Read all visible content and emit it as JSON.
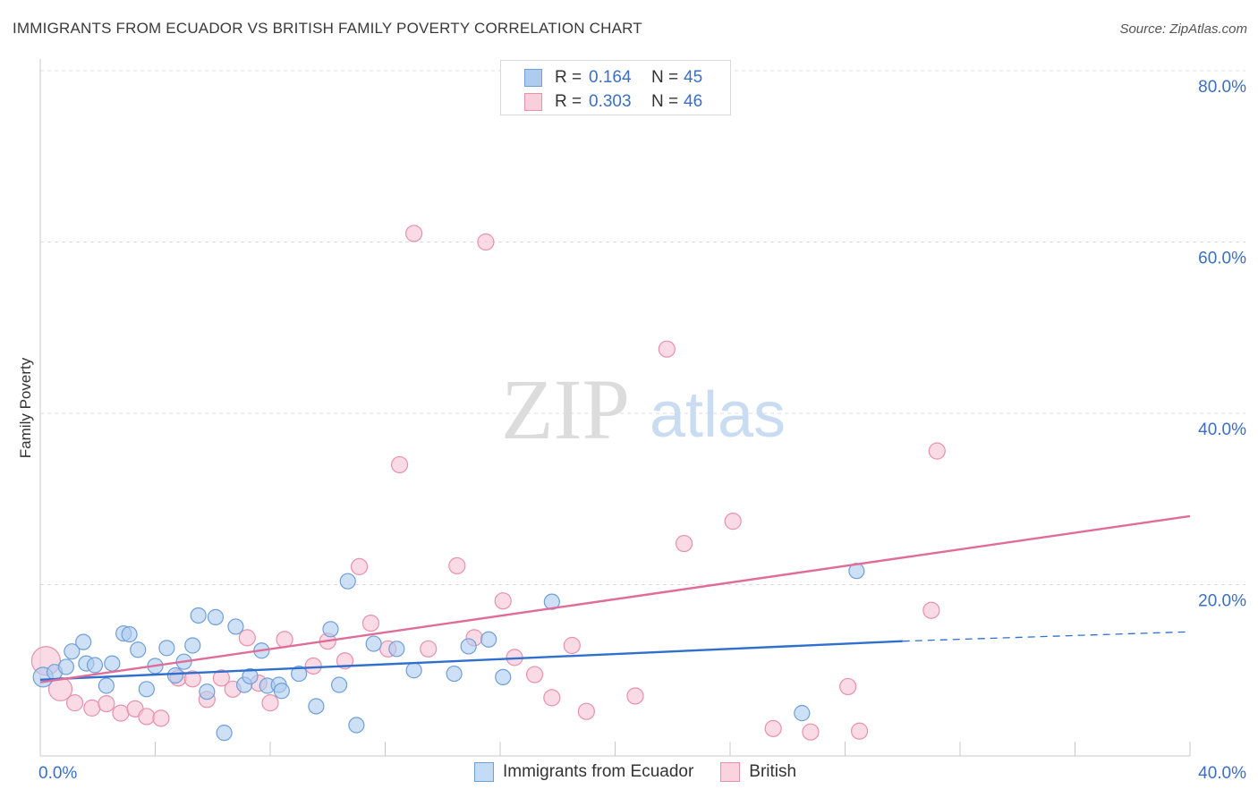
{
  "title": "IMMIGRANTS FROM ECUADOR VS BRITISH FAMILY POVERTY CORRELATION CHART",
  "source": "Source: ZipAtlas.com",
  "watermark": {
    "zip": "ZIP",
    "atlas": "atlas"
  },
  "colors": {
    "blue_fill": "#aecbf0",
    "blue_stroke": "#6f9fd8",
    "blue_line": "#2f6fce",
    "pink_fill": "#f6c2d2",
    "pink_stroke": "#e890ad",
    "pink_line": "#e06c98",
    "axis_label": "#3a6fc4",
    "grid": "#dcdcdc"
  },
  "legend_top": {
    "rows": [
      {
        "series": "Immigrants from Ecuador",
        "r_label": "R =",
        "r_value": "0.164",
        "n_label": "N =",
        "n_value": "45"
      },
      {
        "series": "British",
        "r_label": "R =",
        "r_value": "0.303",
        "n_label": "N =",
        "n_value": "46"
      }
    ]
  },
  "chart_data": {
    "type": "scatter",
    "title": "IMMIGRANTS FROM ECUADOR VS BRITISH FAMILY POVERTY CORRELATION CHART",
    "xlabel": "",
    "ylabel": "Family Poverty",
    "xlim": [
      0,
      40
    ],
    "ylim": [
      0,
      80
    ],
    "x_ticks": [
      0,
      40
    ],
    "x_tick_labels": [
      "0.0%",
      "40.0%"
    ],
    "y_ticks": [
      20,
      40,
      60,
      80
    ],
    "y_tick_labels": [
      "20.0%",
      "40.0%",
      "60.0%",
      "80.0%"
    ],
    "grid": true,
    "legend": [
      "Immigrants from Ecuador",
      "British"
    ],
    "series": [
      {
        "name": "Immigrants from Ecuador",
        "color": "blue",
        "points": [
          [
            0.1,
            9.2
          ],
          [
            0.5,
            9.8
          ],
          [
            0.9,
            10.4
          ],
          [
            1.1,
            12.2
          ],
          [
            1.5,
            13.3
          ],
          [
            1.6,
            10.8
          ],
          [
            1.9,
            10.6
          ],
          [
            2.3,
            8.2
          ],
          [
            2.5,
            10.8
          ],
          [
            2.9,
            14.3
          ],
          [
            3.1,
            14.2
          ],
          [
            3.4,
            12.4
          ],
          [
            3.7,
            7.8
          ],
          [
            4.0,
            10.5
          ],
          [
            4.4,
            12.6
          ],
          [
            4.7,
            9.4
          ],
          [
            5.0,
            11.0
          ],
          [
            5.3,
            12.9
          ],
          [
            5.5,
            16.4
          ],
          [
            5.8,
            7.5
          ],
          [
            6.1,
            16.2
          ],
          [
            6.4,
            2.7
          ],
          [
            6.8,
            15.1
          ],
          [
            7.1,
            8.3
          ],
          [
            7.3,
            9.3
          ],
          [
            7.7,
            12.3
          ],
          [
            7.9,
            8.2
          ],
          [
            8.3,
            8.3
          ],
          [
            8.4,
            7.6
          ],
          [
            9.0,
            9.6
          ],
          [
            9.6,
            5.8
          ],
          [
            10.1,
            14.8
          ],
          [
            10.4,
            8.3
          ],
          [
            10.7,
            20.4
          ],
          [
            11.0,
            3.6
          ],
          [
            11.6,
            13.1
          ],
          [
            12.4,
            12.5
          ],
          [
            13.0,
            10.0
          ],
          [
            14.4,
            9.6
          ],
          [
            14.9,
            12.8
          ],
          [
            15.6,
            13.6
          ],
          [
            16.1,
            9.2
          ],
          [
            17.8,
            18.0
          ],
          [
            26.5,
            5.0
          ],
          [
            28.4,
            21.6
          ]
        ]
      },
      {
        "name": "British",
        "color": "pink",
        "points": [
          [
            0.2,
            11.1
          ],
          [
            0.7,
            7.8
          ],
          [
            1.2,
            6.2
          ],
          [
            1.8,
            5.6
          ],
          [
            2.3,
            6.1
          ],
          [
            2.8,
            5.0
          ],
          [
            3.3,
            5.5
          ],
          [
            3.7,
            4.6
          ],
          [
            4.2,
            4.4
          ],
          [
            4.8,
            9.1
          ],
          [
            5.3,
            9.0
          ],
          [
            5.8,
            6.6
          ],
          [
            6.3,
            9.1
          ],
          [
            6.7,
            7.8
          ],
          [
            7.2,
            13.8
          ],
          [
            7.6,
            8.5
          ],
          [
            8.0,
            6.2
          ],
          [
            8.5,
            13.6
          ],
          [
            9.5,
            10.5
          ],
          [
            10.0,
            13.4
          ],
          [
            10.6,
            11.1
          ],
          [
            11.1,
            22.1
          ],
          [
            11.5,
            15.5
          ],
          [
            12.1,
            12.5
          ],
          [
            12.5,
            34.0
          ],
          [
            13.0,
            61.0
          ],
          [
            13.5,
            12.5
          ],
          [
            14.5,
            22.2
          ],
          [
            15.1,
            13.8
          ],
          [
            15.5,
            60.0
          ],
          [
            16.1,
            18.1
          ],
          [
            16.5,
            11.5
          ],
          [
            17.2,
            9.5
          ],
          [
            17.8,
            6.8
          ],
          [
            18.5,
            12.9
          ],
          [
            19.0,
            5.2
          ],
          [
            20.7,
            7.0
          ],
          [
            21.8,
            47.5
          ],
          [
            22.4,
            24.8
          ],
          [
            24.1,
            27.4
          ],
          [
            25.5,
            3.2
          ],
          [
            26.8,
            2.8
          ],
          [
            28.1,
            8.1
          ],
          [
            31.0,
            17.0
          ],
          [
            31.2,
            35.6
          ],
          [
            28.5,
            2.9
          ]
        ]
      }
    ],
    "trend_lines": [
      {
        "series": "Immigrants from Ecuador",
        "x": [
          0,
          30
        ],
        "y": [
          8.9,
          13.4
        ],
        "dashed_extension_to": [
          40,
          14.5
        ]
      },
      {
        "series": "British",
        "x": [
          0,
          40
        ],
        "y": [
          8.6,
          28.0
        ]
      }
    ]
  }
}
